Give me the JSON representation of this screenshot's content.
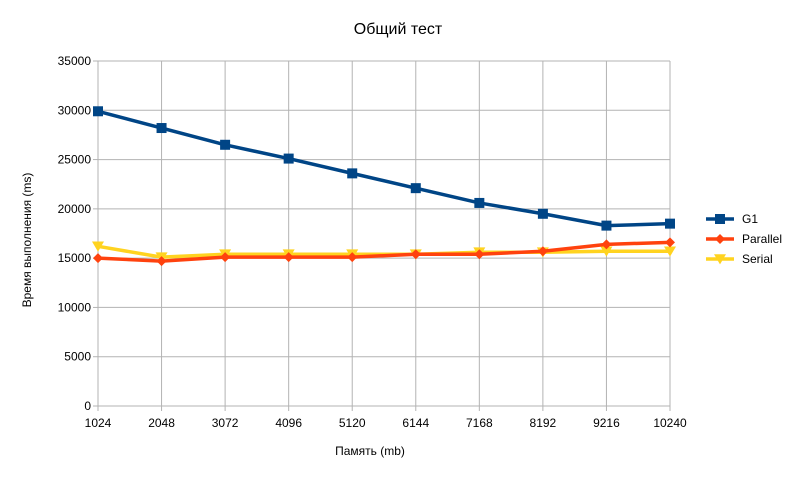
{
  "chart_data": {
    "type": "line",
    "title": "Общий тест",
    "xlabel": "Память (mb)",
    "ylabel": "Время выполнения (ms)",
    "categories": [
      "1024",
      "2048",
      "3072",
      "4096",
      "5120",
      "6144",
      "7168",
      "8192",
      "9216",
      "10240"
    ],
    "ylim": [
      0,
      35000
    ],
    "yticks": [
      0,
      5000,
      10000,
      15000,
      20000,
      25000,
      30000,
      35000
    ],
    "grid": true,
    "legend_position": "right",
    "series": [
      {
        "name": "G1",
        "color": "#004586",
        "marker": "square",
        "values": [
          29900,
          28200,
          26500,
          25100,
          23600,
          22100,
          20600,
          19500,
          18300,
          18500
        ]
      },
      {
        "name": "Parallel",
        "color": "#ff420e",
        "marker": "diamond",
        "values": [
          15000,
          14700,
          15100,
          15100,
          15100,
          15400,
          15400,
          15700,
          16400,
          16600
        ]
      },
      {
        "name": "Serial",
        "color": "#ffd320",
        "marker": "triangle-down",
        "values": [
          16200,
          15100,
          15400,
          15400,
          15400,
          15400,
          15600,
          15600,
          15700,
          15700
        ]
      }
    ]
  }
}
